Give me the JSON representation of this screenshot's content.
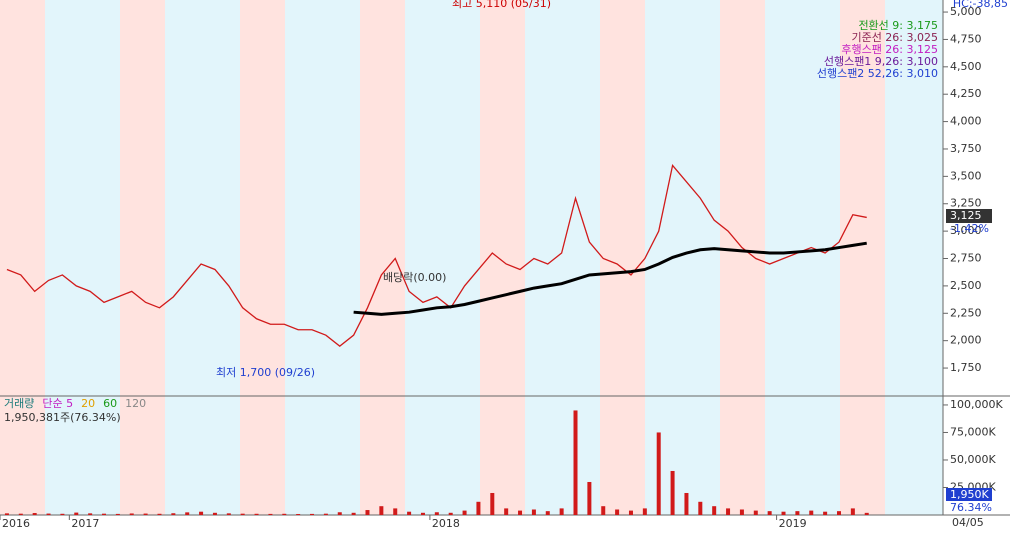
{
  "header": {
    "corner_label": "HC:-38,85"
  },
  "chart_data": [
    {
      "type": "line",
      "legend": [
        "전환선 9: 3,175",
        "기준선 26: 3,025",
        "후행스팬 26: 3,125",
        "선행스팬1 9,26: 3,100",
        "선행스팬2 52,26: 3,010"
      ],
      "legend_colors": [
        "#1a9a1a",
        "#8b2252",
        "#c21cc2",
        "#6a1b9a",
        "#1f3fd0"
      ],
      "annotations": [
        "최고 5,110 (05/31)",
        "최저 1,700 (09/26)",
        "배당락(0.00)"
      ],
      "current_label": "3,125",
      "change_label": "-1.42%",
      "xlim": [
        0,
        68
      ],
      "xticks": [
        {
          "value": 0,
          "label": "2016"
        },
        {
          "value": 5,
          "label": "2017"
        },
        {
          "value": 31,
          "label": "2018"
        },
        {
          "value": 56,
          "label": "2019"
        }
      ],
      "last_date": "04/05",
      "ylim": [
        1504,
        5110
      ],
      "yticks": [
        {
          "value": 1750,
          "label": "1,750"
        },
        {
          "value": 2000,
          "label": "2,000"
        },
        {
          "value": 2250,
          "label": "2,250"
        },
        {
          "value": 2500,
          "label": "2,500"
        },
        {
          "value": 2750,
          "label": "2,750"
        },
        {
          "value": 3000,
          "label": "3,000"
        },
        {
          "value": 3250,
          "label": "3,250"
        },
        {
          "value": 3500,
          "label": "3,500"
        },
        {
          "value": 3750,
          "label": "3,750"
        },
        {
          "value": 4000,
          "label": "4,000"
        },
        {
          "value": 4250,
          "label": "4,250"
        },
        {
          "value": 4500,
          "label": "4,500"
        },
        {
          "value": 4750,
          "label": "4,750"
        },
        {
          "value": 5000,
          "label": "5,000"
        }
      ],
      "series": [
        {
          "color": "#d11a1a",
          "values": [
            2650,
            2600,
            2450,
            2550,
            2600,
            2500,
            2450,
            2350,
            2400,
            2450,
            2350,
            2300,
            2400,
            2550,
            2700,
            2650,
            2500,
            2300,
            2200,
            2150,
            2150,
            2100,
            2100,
            2050,
            1950,
            2050,
            2300,
            2600,
            2750,
            2450,
            2350,
            2400,
            2300,
            2500,
            2650,
            2800,
            2700,
            2650,
            2750,
            2700,
            2800,
            3300,
            2900,
            2750,
            2700,
            2600,
            2750,
            3000,
            3600,
            3450,
            3300,
            3100,
            3000,
            2850,
            2750,
            2700,
            2750,
            2800,
            2850,
            2800,
            2900,
            3150,
            3125
          ]
        },
        {
          "color": "#000000",
          "values": [
            null,
            null,
            null,
            null,
            null,
            null,
            null,
            null,
            null,
            null,
            null,
            null,
            null,
            null,
            null,
            null,
            null,
            null,
            null,
            null,
            null,
            null,
            null,
            null,
            null,
            2260,
            2250,
            2240,
            2250,
            2260,
            2280,
            2300,
            2310,
            2330,
            2360,
            2390,
            2420,
            2450,
            2480,
            2500,
            2520,
            2560,
            2600,
            2610,
            2620,
            2630,
            2650,
            2700,
            2760,
            2800,
            2830,
            2840,
            2830,
            2820,
            2810,
            2800,
            2800,
            2810,
            2820,
            2830,
            2850,
            2870,
            2890
          ]
        }
      ]
    },
    {
      "type": "bar",
      "legend": [
        "거래량",
        "단순 5",
        "20",
        "60",
        "120"
      ],
      "legend_colors": [
        "#1a7a7a",
        "#c21cc2",
        "#e0a000",
        "#1a9a1a",
        "#888888"
      ],
      "summary": "1,950,381주(76.34%)",
      "current_label": "1,950K",
      "change_label": "76.34%",
      "xlim": [
        0,
        68
      ],
      "ylim": [
        0,
        104500
      ],
      "yticks": [
        {
          "value": 25000,
          "label": "25,000K"
        },
        {
          "value": 50000,
          "label": "50,000K"
        },
        {
          "value": 75000,
          "label": "75,000K"
        },
        {
          "value": 100000,
          "label": "100,000K"
        }
      ],
      "color": "#d11a1a",
      "values": [
        1500,
        1200,
        1800,
        1300,
        1100,
        2200,
        1500,
        1200,
        1000,
        1400,
        1300,
        1100,
        1600,
        2400,
        3000,
        2000,
        1500,
        1200,
        1100,
        1000,
        1100,
        900,
        1000,
        1200,
        2500,
        2000,
        4500,
        8000,
        6000,
        3000,
        2000,
        2500,
        2000,
        4000,
        12000,
        20000,
        6000,
        4000,
        5000,
        3500,
        6000,
        95000,
        30000,
        8000,
        5000,
        4000,
        6000,
        75000,
        40000,
        20000,
        12000,
        8000,
        6000,
        5000,
        4000,
        3500,
        3000,
        3500,
        4000,
        3000,
        3500,
        6000,
        1950
      ]
    }
  ]
}
